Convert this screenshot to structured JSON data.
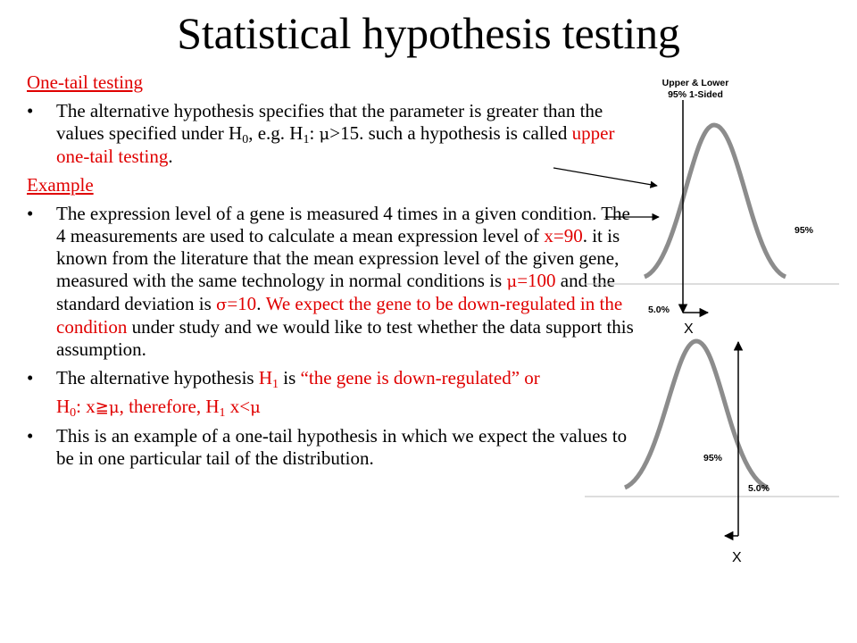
{
  "title": "Statistical hypothesis testing",
  "sections": {
    "one_tail_heading": "One-tail testing",
    "example_heading": "Example"
  },
  "bullet1": {
    "text1": "The alternative hypothesis specifies that the parameter is greater than the values specified under H",
    "sub0": "0",
    "text2": ", e.g. H",
    "sub1": "1",
    "text3": ": ",
    "mu": "μ",
    "text4": ">15. such a hypothesis is called ",
    "red": "upper one-tail testing",
    "text5": "."
  },
  "bullet2": {
    "text1": "The expression level of a gene is measured 4 times in a given condition. The 4 measurements are used to calculate a mean expression level of ",
    "xval": "x=90",
    "text2": ". it is known from the literature that the mean expression level of the given gene, measured with the same technology in normal conditions is ",
    "mu": "μ",
    "muval": "=100",
    "text3": " and the standard deviation is ",
    "sigma": "σ",
    "sigmaval": "=10",
    "text4": ". ",
    "red": "We expect the gene to be down-regulated in the condition",
    "text5": " under study and we would like to test whether the data support this assumption."
  },
  "bullet3": {
    "text1": "The alternative hypothesis ",
    "h": "H",
    "sub": "1",
    "text2": " is ",
    "red": "“the gene is down-regulated” or"
  },
  "line4": {
    "h0": "H",
    "sub0": "0",
    "text1": ": x",
    "geq": "≧",
    "mu": "μ",
    "text2": ", therefore, H",
    "sub1": "1",
    "text3": " x<",
    "mu2": "μ"
  },
  "bullet5": {
    "text": "This is an example of a one-tail hypothesis in which we expect the values to be in one particular tail of the distribution."
  },
  "figures": {
    "top": {
      "caption_line1": "Upper & Lower",
      "caption_line2": "95% 1-Sided",
      "label_95": "95%",
      "label_5": "5.0%",
      "x_label": "X"
    },
    "bottom": {
      "label_95": "95%",
      "label_5": "5.0%",
      "x_label": "X"
    }
  },
  "colors": {
    "red_text": "#e00000",
    "curve": "#8c8c8c"
  }
}
